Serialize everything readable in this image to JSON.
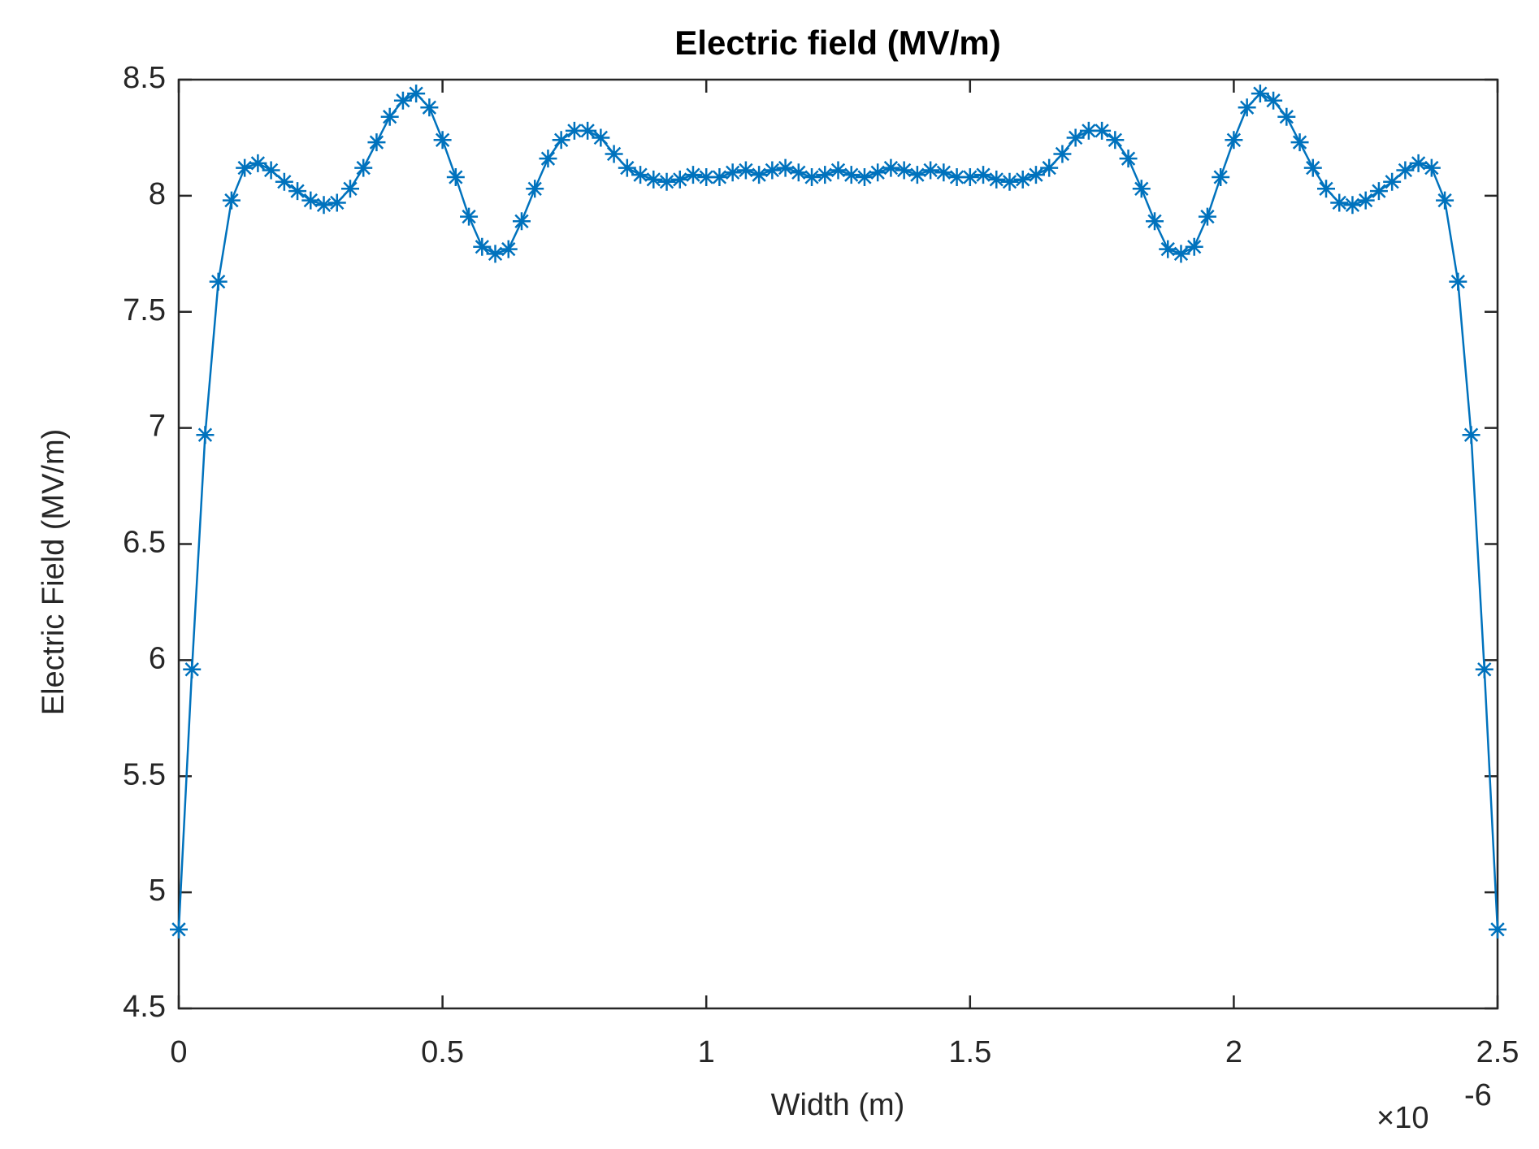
{
  "chart_data": {
    "type": "line",
    "title": "Electric field (MV/m)",
    "x_label": "Width (m)",
    "y_label": "Electric Field (MV/m)",
    "x_multiplier": {
      "base": "×10",
      "exponent": "-6"
    },
    "x": [
      0,
      0.025,
      0.05,
      0.075,
      0.1,
      0.125,
      0.15,
      0.175,
      0.2,
      0.225,
      0.25,
      0.275,
      0.3,
      0.325,
      0.35,
      0.375,
      0.4,
      0.425,
      0.45,
      0.475,
      0.5,
      0.525,
      0.55,
      0.575,
      0.6,
      0.625,
      0.65,
      0.675,
      0.7,
      0.725,
      0.75,
      0.775,
      0.8,
      0.825,
      0.85,
      0.875,
      0.9,
      0.925,
      0.95,
      0.975,
      1,
      1.025,
      1.05,
      1.075,
      1.1,
      1.125,
      1.15,
      1.175,
      1.2,
      1.225,
      1.25,
      1.275,
      1.3,
      1.325,
      1.35,
      1.375,
      1.4,
      1.425,
      1.45,
      1.475,
      1.5,
      1.525,
      1.55,
      1.575,
      1.6,
      1.625,
      1.65,
      1.675,
      1.7,
      1.725,
      1.75,
      1.775,
      1.8,
      1.825,
      1.85,
      1.875,
      1.9,
      1.925,
      1.95,
      1.975,
      2,
      2.025,
      2.05,
      2.075,
      2.1,
      2.125,
      2.15,
      2.175,
      2.2,
      2.225,
      2.25,
      2.275,
      2.3,
      2.325,
      2.35,
      2.375,
      2.4,
      2.425,
      2.45,
      2.475,
      2.5
    ],
    "series": [
      {
        "color": "#0072bd",
        "marker": "asterisk",
        "values": [
          4.84,
          5.96,
          6.97,
          7.63,
          7.98,
          8.12,
          8.14,
          8.11,
          8.06,
          8.02,
          7.98,
          7.96,
          7.97,
          8.03,
          8.12,
          8.23,
          8.34,
          8.41,
          8.44,
          8.38,
          8.24,
          8.08,
          7.91,
          7.78,
          7.75,
          7.77,
          7.89,
          8.03,
          8.16,
          8.24,
          8.28,
          8.28,
          8.25,
          8.18,
          8.12,
          8.09,
          8.07,
          8.06,
          8.07,
          8.09,
          8.08,
          8.08,
          8.1,
          8.11,
          8.09,
          8.11,
          8.12,
          8.1,
          8.08,
          8.09,
          8.11,
          8.09,
          8.08,
          8.1,
          8.12,
          8.11,
          8.09,
          8.11,
          8.1,
          8.08,
          8.08,
          8.09,
          8.07,
          8.06,
          8.07,
          8.09,
          8.12,
          8.18,
          8.25,
          8.28,
          8.28,
          8.24,
          8.16,
          8.03,
          7.89,
          7.77,
          7.75,
          7.78,
          7.91,
          8.08,
          8.24,
          8.38,
          8.44,
          8.41,
          8.34,
          8.23,
          8.12,
          8.03,
          7.97,
          7.96,
          7.98,
          8.02,
          8.06,
          8.11,
          8.14,
          8.12,
          7.98,
          7.63,
          6.97,
          5.96,
          4.84
        ]
      }
    ],
    "xlim": [
      0,
      2.5
    ],
    "ylim": [
      4.5,
      8.5
    ],
    "xticks": [
      0,
      0.5,
      1,
      1.5,
      2,
      2.5
    ],
    "yticks": [
      4.5,
      5,
      5.5,
      6,
      6.5,
      7,
      7.5,
      8,
      8.5
    ],
    "grid": false
  }
}
